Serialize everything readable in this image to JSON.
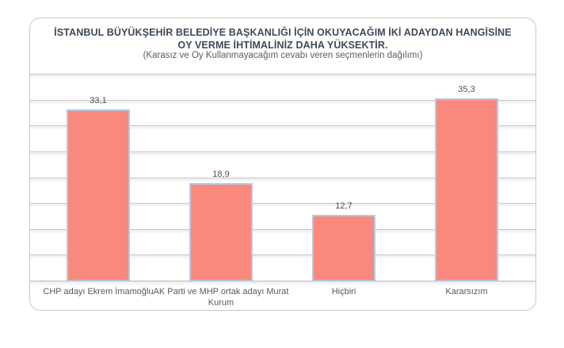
{
  "colors": {
    "bar_fill": "#FA897D",
    "bar_border": "#B6C8E2",
    "gridline": "#C9C9C9",
    "title_text": "#3E4A59",
    "subtitle_text": "#5A5E64",
    "card_border": "#C9C9C9"
  },
  "chart_data": {
    "type": "bar",
    "title": "İSTANBUL BÜYÜKŞEHİR BELEDİYE BAŞKANLIĞI İÇİN OKUYACAĞIM İKİ ADAYDAN HANGİSİNE OY VERME İHTİMALİNİZ DAHA YÜKSEKTİR.",
    "subtitle": "(Karasız ve Oy Kullanmayacağım cevabı veren seçmenlerin dağılımı)",
    "categories": [
      "CHP adayı Ekrem İmamoğlu",
      "AK Parti ve MHP ortak adayı Murat Kurum",
      "Hiçbiri",
      "Kararsızım"
    ],
    "values": [
      33.1,
      18.9,
      12.7,
      35.3
    ],
    "value_labels": [
      "33,1",
      "18,9",
      "12,7",
      "35,3"
    ],
    "xlabel": "",
    "ylabel": "",
    "ylim": [
      0,
      40
    ],
    "grid_step": 5,
    "grid": true,
    "legend": false
  }
}
